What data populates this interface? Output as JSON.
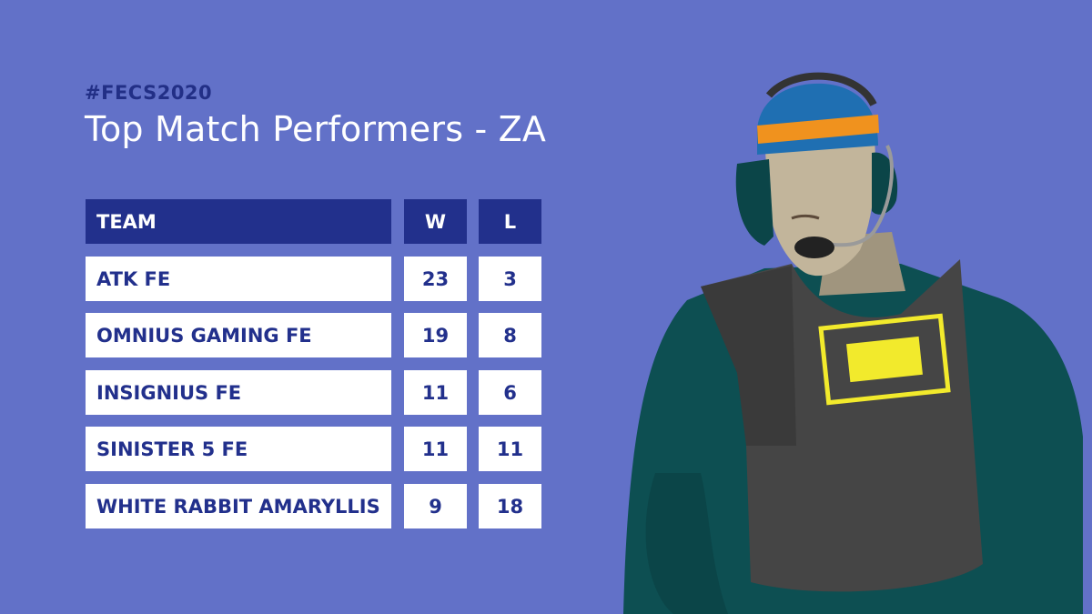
{
  "header": {
    "hashtag": "#FECS2020",
    "title": "Top Match Performers - ZA"
  },
  "table": {
    "columns": [
      "TEAM",
      "W",
      "L"
    ],
    "rows": [
      {
        "team": "ATK FE",
        "w": "23",
        "l": "3"
      },
      {
        "team": "OMNIUS GAMING FE",
        "w": "19",
        "l": "8"
      },
      {
        "team": "INSIGNIUS FE",
        "w": "11",
        "l": "6"
      },
      {
        "team": "SINISTER 5 FE",
        "w": "11",
        "l": "11"
      },
      {
        "team": "WHITE RABBIT AMARYLLIS",
        "w": "9",
        "l": "18"
      }
    ]
  },
  "illustration": {
    "name": "operator-with-headset",
    "colors": {
      "background": "#6271c8",
      "header_fill": "#22308c",
      "beanie_blue": "#1f6fb2",
      "beanie_stripe": "#f0921e",
      "skin": "#c2b59b",
      "jacket": "#0d4f52",
      "vest": "#454545",
      "patch": "#f2ea2c"
    }
  }
}
